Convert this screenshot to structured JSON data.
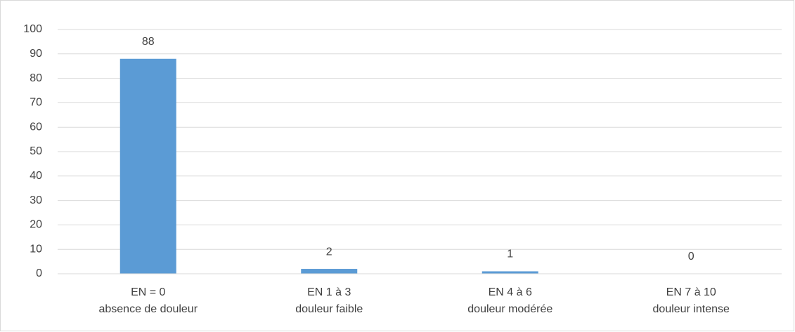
{
  "chart_data": {
    "type": "bar",
    "categories": [
      [
        "EN = 0",
        "absence de douleur"
      ],
      [
        "EN 1 à 3",
        "douleur faible"
      ],
      [
        "EN 4 à 6",
        "douleur modérée"
      ],
      [
        "EN 7 à 10",
        "douleur intense"
      ]
    ],
    "values": [
      88,
      2,
      1,
      0
    ],
    "color": "#5b9bd5",
    "ylim": [
      0,
      100
    ],
    "yticks": [
      0,
      10,
      20,
      30,
      40,
      50,
      60,
      70,
      80,
      90,
      100
    ],
    "grid": true
  }
}
